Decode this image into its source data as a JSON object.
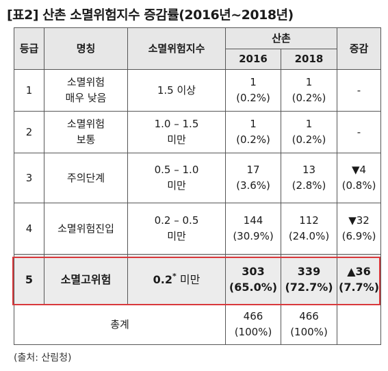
{
  "title": "[표2] 산촌 소멸위험지수 증감률(2016년~2018년)",
  "header": {
    "grade": "등급",
    "name": "명칭",
    "index": "소멸위험지수",
    "village": "산촌",
    "y2016": "2016",
    "y2018": "2018",
    "change": "증감"
  },
  "rows": [
    {
      "grade": "1",
      "name": [
        "소멸위험",
        "매우 낮음"
      ],
      "index": [
        "1.5 이상"
      ],
      "v2016": [
        "1",
        "(0.2%)"
      ],
      "v2018": [
        "1",
        "(0.2%)"
      ],
      "change": [
        "-"
      ]
    },
    {
      "grade": "2",
      "name": [
        "소멸위험",
        "보통"
      ],
      "index": [
        "1.0 – 1.5",
        "미만"
      ],
      "v2016": [
        "1",
        "(0.2%)"
      ],
      "v2018": [
        "1",
        "(0.2%)"
      ],
      "change": [
        "-"
      ]
    },
    {
      "grade": "3",
      "name": [
        "주의단계"
      ],
      "index": [
        "0.5 – 1.0",
        "미만"
      ],
      "v2016": [
        "17",
        "(3.6%)"
      ],
      "v2018": [
        "13",
        "(2.8%)"
      ],
      "change": [
        "▼4",
        "(0.8%)"
      ]
    },
    {
      "grade": "4",
      "name": [
        "소멸위험진입"
      ],
      "index": [
        "0.2 – 0.5",
        "미만"
      ],
      "v2016": [
        "144",
        "(30.9%)"
      ],
      "v2018": [
        "112",
        "(24.0%)"
      ],
      "change": [
        "▼32",
        "(6.9%)"
      ]
    },
    {
      "grade": "5",
      "name": [
        "소멸고위험"
      ],
      "index_value": "0.2",
      "index_mark": "*",
      "index_suffix": " 미만",
      "v2016": [
        "303",
        "(65.0%)"
      ],
      "v2018": [
        "339",
        "(72.7%)"
      ],
      "change": [
        "▲36",
        "(7.7%)"
      ]
    }
  ],
  "total": {
    "label": "총계",
    "v2016": [
      "466",
      "(100%)"
    ],
    "v2018": [
      "466",
      "(100%)"
    ],
    "change": ""
  },
  "source": "(출처: 산림청)",
  "colors": {
    "highlight_border": "#d9383b",
    "header_bg": "#e7e7e7"
  }
}
